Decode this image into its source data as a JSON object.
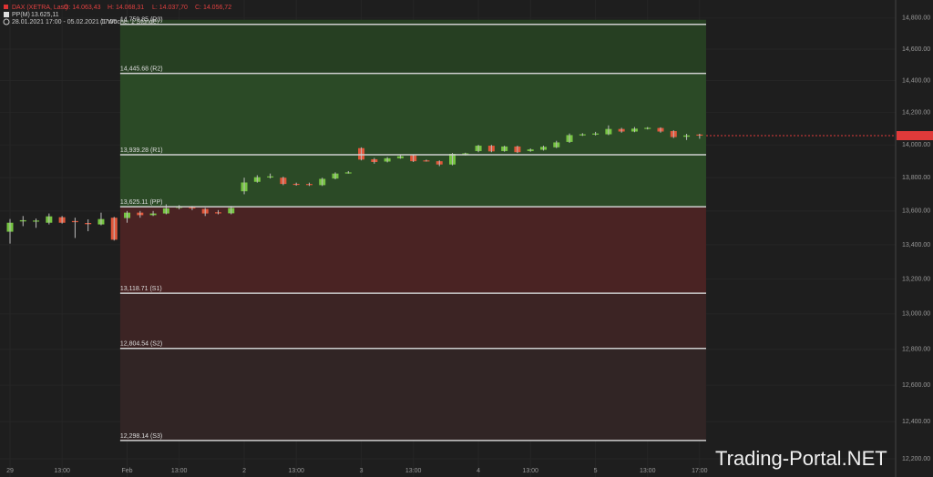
{
  "chart_data": {
    "type": "candlestick",
    "info_line": [
      "DAX (XETRA, Last)",
      "O: 14.063,43",
      "H: 14.068,31",
      "L: 14.037,70",
      "C: 14.056,72"
    ],
    "indicator": [
      "PP(M)",
      "13.625,11"
    ],
    "range": [
      "28.01.2021 17:00 - 05.02.2021 17:00",
      "(1 Woche, 1 Stunde)"
    ],
    "watermark": "Trading-Portal.NET",
    "categories": [
      "29",
      null,
      null,
      null,
      "13:00",
      null,
      null,
      null,
      null,
      "Feb",
      null,
      null,
      null,
      "13:00",
      null,
      null,
      null,
      null,
      "2",
      null,
      null,
      null,
      "13:00",
      null,
      null,
      null,
      null,
      "3",
      null,
      null,
      null,
      "13:00",
      null,
      null,
      null,
      null,
      "4",
      null,
      null,
      null,
      "13:00",
      null,
      null,
      null,
      null,
      "5",
      null,
      null,
      null,
      "13:00",
      null,
      null,
      null,
      "17:00"
    ],
    "open": [
      13477,
      13538,
      13540,
      13530,
      13563,
      13540,
      13528,
      13520,
      13560,
      13558,
      13590,
      13575,
      13585,
      13620,
      13622,
      13612,
      13592,
      13586,
      13718,
      13775,
      13802,
      13800,
      13763,
      13762,
      13755,
      13795,
      13828,
      13980,
      13912,
      13898,
      13918,
      13935,
      13905,
      13900,
      13880,
      13940,
      13962,
      13995,
      13962,
      13990,
      13962,
      13970,
      13985,
      14018,
      14060,
      14064,
      14065,
      14098,
      14082,
      14100,
      14104,
      14085,
      14050,
      14063.43
    ],
    "high": [
      13552,
      13570,
      13555,
      13585,
      13570,
      13560,
      13550,
      13590,
      13565,
      13600,
      13600,
      13600,
      13640,
      13635,
      13630,
      13618,
      13605,
      13630,
      13800,
      13815,
      13825,
      13806,
      13770,
      13770,
      13800,
      13832,
      13840,
      13985,
      13920,
      13925,
      13940,
      13940,
      13910,
      13905,
      13950,
      13952,
      14000,
      14000,
      13995,
      13995,
      13978,
      13995,
      14025,
      14070,
      14072,
      14080,
      14120,
      14105,
      14110,
      14110,
      14108,
      14090,
      14068,
      14068.31
    ],
    "low": [
      13407,
      13510,
      13500,
      13520,
      13525,
      13440,
      13480,
      13515,
      13425,
      13530,
      13560,
      13570,
      13580,
      13610,
      13605,
      13570,
      13580,
      13580,
      13700,
      13770,
      13795,
      13755,
      13752,
      13750,
      13750,
      13790,
      13825,
      13905,
      13885,
      13893,
      13915,
      13895,
      13898,
      13870,
      13875,
      13935,
      13955,
      13955,
      13958,
      13950,
      13958,
      13965,
      13980,
      14012,
      14055,
      14058,
      14060,
      14075,
      14078,
      14095,
      14075,
      14042,
      14030,
      14037.7
    ],
    "close": [
      13530,
      13545,
      13543,
      13568,
      13530,
      13535,
      13525,
      13552,
      13430,
      13590,
      13575,
      13585,
      13616,
      13625,
      13615,
      13585,
      13590,
      13618,
      13771,
      13803,
      13808,
      13762,
      13760,
      13758,
      13793,
      13825,
      13832,
      13910,
      13895,
      13918,
      13930,
      13900,
      13902,
      13880,
      13945,
      13948,
      13995,
      13960,
      13990,
      13955,
      13972,
      13988,
      14015,
      14060,
      14065,
      14070,
      14098,
      14082,
      14100,
      14105,
      14082,
      14048,
      14058,
      14056.72
    ],
    "up_color": "#76c442",
    "down_color": "#e0573a",
    "log_scale": true,
    "ylim": [
      12103,
      14918
    ],
    "yticks": [
      {
        "value": 12200,
        "label": "12,200.00"
      },
      {
        "value": 12400,
        "label": "12,400.00"
      },
      {
        "value": 12600,
        "label": "12,600.00"
      },
      {
        "value": 12800,
        "label": "12,800.00"
      },
      {
        "value": 13000,
        "label": "13,000.00"
      },
      {
        "value": 13200,
        "label": "13,200.00"
      },
      {
        "value": 13400,
        "label": "13,400.00"
      },
      {
        "value": 13600,
        "label": "13,600.00"
      },
      {
        "value": 13800,
        "label": "13,800.00"
      },
      {
        "value": 14000,
        "label": "14,000.00"
      },
      {
        "value": 14200,
        "label": "14,200.00"
      },
      {
        "value": 14400,
        "label": "14,400.00"
      },
      {
        "value": 14600,
        "label": "14,600.00"
      },
      {
        "value": 14800,
        "label": "14,800.00"
      }
    ],
    "levels": [
      {
        "value": 14759.85,
        "label": "14,759.85 (R3)"
      },
      {
        "value": 14445.68,
        "label": "14,445.68 (R2)"
      },
      {
        "value": 13939.28,
        "label": "13,939.28 (R1)"
      },
      {
        "value": 13625.11,
        "label": "13,625.11 (PP)"
      },
      {
        "value": 13118.71,
        "label": "13,118.71 (S1)"
      },
      {
        "value": 12804.54,
        "label": "12,804.54 (S2)"
      },
      {
        "value": 12298.14,
        "label": "12,298.14 (S3)"
      }
    ],
    "last_price": {
      "value": 14056.72,
      "label": "14,056.72"
    },
    "last_price_color": "#e03a3a"
  }
}
